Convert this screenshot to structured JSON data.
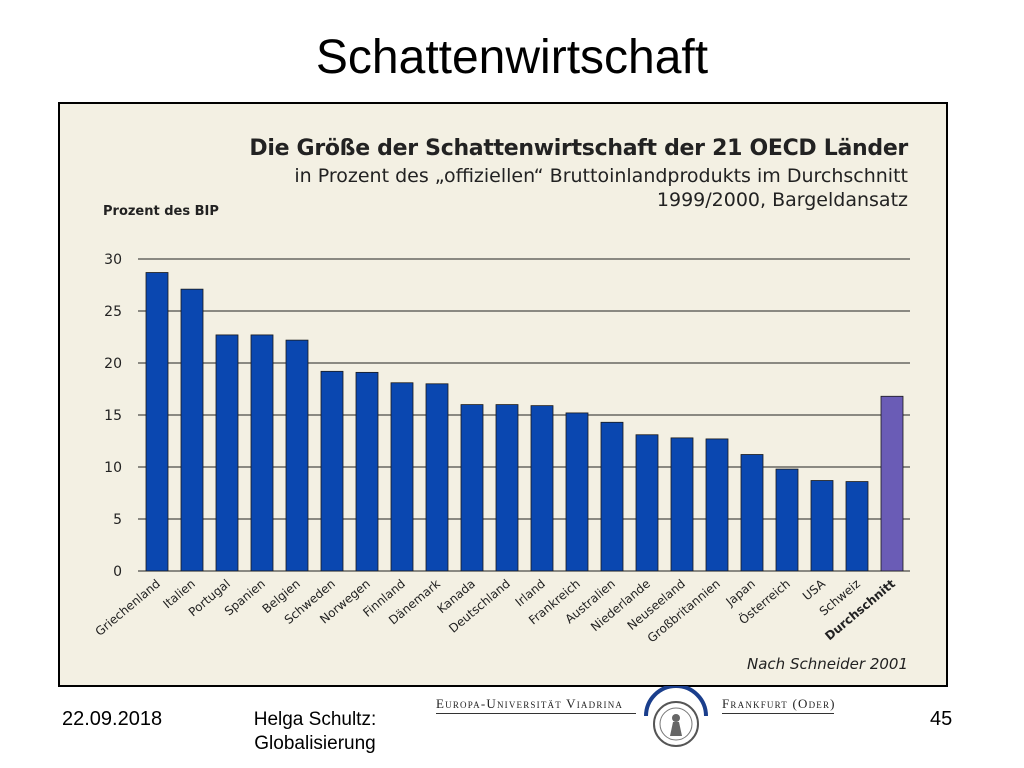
{
  "slide": {
    "title": "Schattenwirtschaft",
    "footer_date": "22.09.2018",
    "footer_author": "Helga Schultz: Globalisierung",
    "page_number": "45",
    "logo_left": "Europa-Universität Viadrina",
    "logo_right": "Frankfurt (Oder)"
  },
  "chart_data": {
    "type": "bar",
    "title": "Die Größe der Schattenwirtschaft der 21 OECD Länder",
    "subtitle": "in Prozent des „offiziellen“ Bruttoinlandprodukts im Durchschnitt 1999/2000, Bargeldansatz",
    "ylabel": "Prozent des BIP",
    "xlabel": "",
    "source": "Nach Schneider 2001",
    "ylim": [
      0,
      30
    ],
    "yticks": [
      0,
      5,
      10,
      15,
      20,
      25,
      30
    ],
    "grid": true,
    "categories": [
      "Griechenland",
      "Italien",
      "Portugal",
      "Spanien",
      "Belgien",
      "Schweden",
      "Norwegen",
      "Finnland",
      "Dänemark",
      "Kanada",
      "Deutschland",
      "Irland",
      "Frankreich",
      "Australien",
      "Niederlande",
      "Neuseeland",
      "Großbritannien",
      "Japan",
      "Österreich",
      "USA",
      "Schweiz",
      "Durchschnitt"
    ],
    "values": [
      28.7,
      27.1,
      22.7,
      22.7,
      22.2,
      19.2,
      19.1,
      18.1,
      18.0,
      16.0,
      16.0,
      15.9,
      15.2,
      14.3,
      13.1,
      12.8,
      12.7,
      11.2,
      9.8,
      8.7,
      8.6,
      16.8
    ],
    "colors": {
      "country": "#0a47b0",
      "average": "#6a5cb6"
    }
  }
}
